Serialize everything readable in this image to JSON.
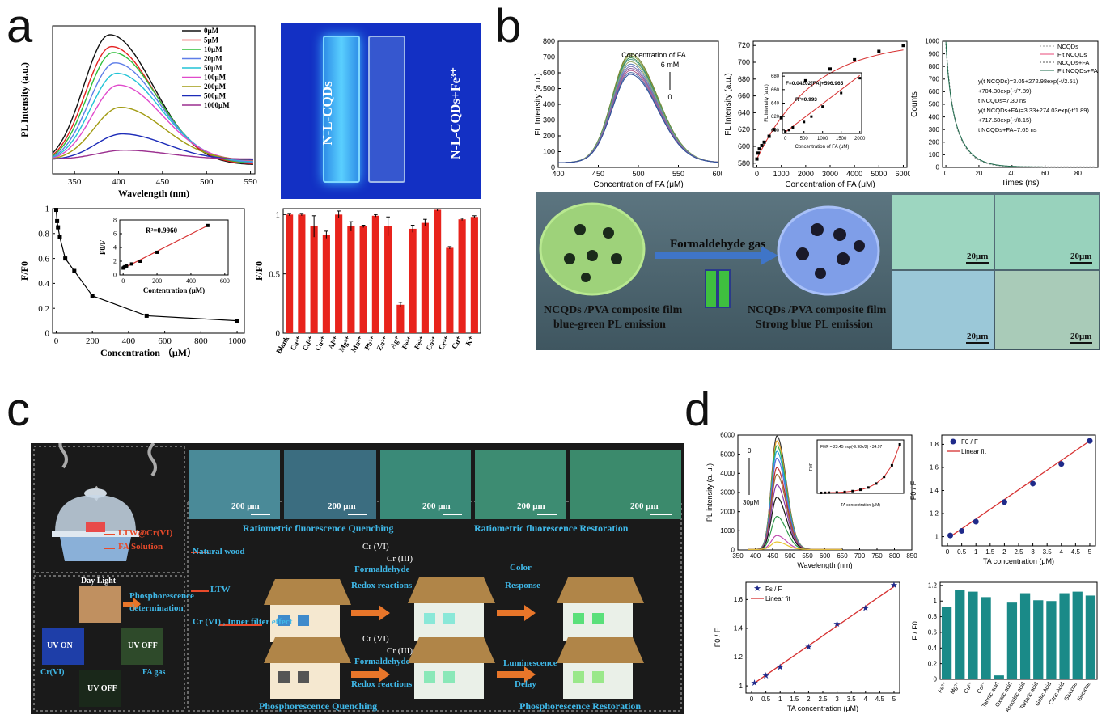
{
  "panel_labels": {
    "a": "a",
    "b": "b",
    "c": "c",
    "d": "d"
  },
  "colors": {
    "bar_red": "#e8231c",
    "bar_teal": "#1a8a88",
    "fit_red": "#d63030",
    "point_navy": "#1f2a8a",
    "line_black": "#111111",
    "panel_c_bg": "#1b1b1b",
    "panel_b_bg": "#4b6570",
    "cuvette_blue": "#1230c8"
  },
  "panel_a": {
    "photo": {
      "left_label": "N-L-CQDs",
      "right_label": "N-L-CQDs+Fe³⁺"
    }
  },
  "panel_b": {
    "scheme": {
      "arrow_label": "Formaldehyde gas",
      "left_caption_1": "NCQDs /PVA composite film",
      "left_caption_2": "blue-green PL emission",
      "right_caption_1": "NCQDs /PVA composite film",
      "right_caption_2": "Strong blue PL emission",
      "scale_bars": [
        "20μm",
        "20μm",
        "20μm",
        "20μm"
      ]
    }
  },
  "panel_c": {
    "scale_bars": [
      "200 μm",
      "200 μm",
      "200 μm",
      "200 μm",
      "200 μm"
    ],
    "title_quench": "Ratiometric fluorescence Quenching",
    "title_restore": "Ratiometric fluorescence Restoration",
    "label_ltw_crvi": "LTW@Cr(VI)",
    "label_fa_solution": "FA Solution",
    "label_day_light": "Day Light",
    "label_phos_det_1": "Phosphorescence",
    "label_phos_det_2": "determination",
    "label_uv_on": "UV ON",
    "label_uv_off": "UV OFF",
    "label_uv_off_2": "UV OFF",
    "label_crvi": "Cr(VI)",
    "label_fa_gas": "FA gas",
    "label_natural_wood": "Natural wood",
    "label_ltw": "LTW",
    "label_inner_filter": "Cr (VI) , Inner filter effect",
    "label_cr_vi_1": "Cr (VI)",
    "label_cr_iii_1": "Cr (III)",
    "label_formaldehyde_1": "Formaldehyde",
    "label_redox_1": "Redox reactions",
    "label_color_1": "Color",
    "label_color_2": "Response",
    "label_cr_vi_2": "Cr (VI)",
    "label_cr_iii_2": "Cr (III)",
    "label_formaldehyde_2": "Formaldehyde",
    "label_redox_2": "Redox reactions",
    "label_lum_1": "Luminescence",
    "label_lum_2": "Delay",
    "bottom_quench": "Phosphorescence Quenching",
    "bottom_restore": "Phosphorescence Restoration"
  },
  "chart_data": [
    {
      "id": "a1",
      "type": "line",
      "xlabel": "Wavelength (nm)",
      "ylabel": "PL Intensity (a.u.)",
      "xlim": [
        325,
        555
      ],
      "xticks": [
        350,
        400,
        450,
        500,
        550
      ],
      "peak_x": 390,
      "series": [
        {
          "name": "0μM",
          "color": "#111111",
          "peak": 0.94
        },
        {
          "name": "5μM",
          "color": "#e52222",
          "peak": 0.86
        },
        {
          "name": "10μM",
          "color": "#2fbf3a",
          "peak": 0.82
        },
        {
          "name": "20μM",
          "color": "#5e7ee8",
          "peak": 0.75
        },
        {
          "name": "50μM",
          "color": "#22c3d6",
          "peak": 0.68
        },
        {
          "name": "100μM",
          "color": "#e04acb",
          "peak": 0.6
        },
        {
          "name": "200μM",
          "color": "#a19b12",
          "peak": 0.45
        },
        {
          "name": "500μM",
          "color": "#1c2bb8",
          "peak": 0.27
        },
        {
          "name": "1000μM",
          "color": "#9b2f8f",
          "peak": 0.16
        }
      ]
    },
    {
      "id": "a2",
      "type": "line",
      "xlabel": "Concentration （μM）",
      "ylabel": "F/F0",
      "xlim": [
        -20,
        1040
      ],
      "ylim": [
        0.0,
        1.0
      ],
      "xticks": [
        0,
        200,
        400,
        600,
        800,
        1000
      ],
      "yticks": [
        0.0,
        0.2,
        0.4,
        0.6,
        0.8,
        1.0
      ],
      "x": [
        0,
        5,
        10,
        20,
        50,
        100,
        200,
        500,
        1000
      ],
      "y": [
        0.99,
        0.9,
        0.85,
        0.77,
        0.6,
        0.5,
        0.3,
        0.14,
        0.1
      ],
      "inset": {
        "xlabel": "Contentration (μM)",
        "ylabel": "F0/F",
        "annotation": "R²=0.9960",
        "xlim": [
          -20,
          620
        ],
        "ylim": [
          0,
          8
        ],
        "xticks": [
          0,
          200,
          400,
          600
        ],
        "yticks": [
          0,
          2,
          4,
          6,
          8
        ],
        "x": [
          0,
          5,
          10,
          20,
          50,
          100,
          200,
          500
        ],
        "y": [
          1.0,
          1.1,
          1.2,
          1.3,
          1.6,
          2.0,
          3.3,
          7.2
        ]
      }
    },
    {
      "id": "a3",
      "type": "bar",
      "ylabel": "F/F0",
      "ylim": [
        0.0,
        1.05
      ],
      "yticks": [
        0.0,
        0.5,
        1.0
      ],
      "categories": [
        "Blank",
        "Ca²⁺",
        "Cd²⁺",
        "Cu²⁺",
        "Al³⁺",
        "Mg²⁺",
        "Mn²⁺",
        "Pb²⁺",
        "Zn²⁺",
        "Ag⁺",
        "Fe³⁺",
        "Fe²⁺",
        "Co²⁺",
        "Cr³⁺",
        "Cu⁺",
        "K⁺"
      ],
      "values": [
        1.0,
        1.0,
        0.9,
        0.83,
        1.0,
        0.9,
        0.9,
        0.99,
        0.9,
        0.24,
        0.88,
        0.93,
        1.04,
        0.72,
        0.96,
        0.98
      ],
      "errors": [
        0.01,
        0.01,
        0.09,
        0.03,
        0.03,
        0.04,
        0.01,
        0.01,
        0.08,
        0.02,
        0.03,
        0.03,
        0.01,
        0.01,
        0.01,
        0.01
      ]
    },
    {
      "id": "b1",
      "type": "line",
      "xlabel": "Concentration of FA (μM)",
      "ylabel": "FL Intensity (a.u.)",
      "xlim": [
        400,
        600
      ],
      "ylim": [
        0,
        800
      ],
      "xticks": [
        400,
        450,
        500,
        550,
        600
      ],
      "yticks": [
        0,
        100,
        200,
        300,
        400,
        500,
        600,
        700,
        800
      ],
      "annotation": "Concentration of FA",
      "annotation_top": "6 mM",
      "annotation_bottom": "0",
      "peak_x": 490,
      "peaks": [
        720,
        708,
        695,
        685,
        670,
        655,
        640,
        628,
        615,
        602,
        590
      ],
      "colors": [
        "#6b7d2e",
        "#8b9c3c",
        "#3b8a55",
        "#4f9e8a",
        "#9aa86a",
        "#5a7fb8",
        "#7a6fb0",
        "#8a5f9e",
        "#b05a8a",
        "#4b6fa8",
        "#2f4f9a"
      ]
    },
    {
      "id": "b2",
      "type": "scatter",
      "xlabel": "Concentration of FA (μM)",
      "ylabel": "FL Intensity (a.u.)",
      "xlim": [
        -150,
        6150
      ],
      "ylim": [
        575,
        725
      ],
      "xticks": [
        0,
        1000,
        2000,
        3000,
        4000,
        5000,
        6000
      ],
      "yticks": [
        580,
        600,
        620,
        640,
        660,
        680,
        700,
        720
      ],
      "x": [
        0,
        50,
        100,
        200,
        300,
        500,
        700,
        1000,
        2000,
        3000,
        4000,
        5000,
        6000
      ],
      "y": [
        585,
        592,
        597,
        601,
        605,
        612,
        620,
        634,
        678,
        692,
        703,
        713,
        720
      ],
      "inset": {
        "xlabel": "Concentration of FA (μM)",
        "ylabel": "FL Intensity (a.u.)",
        "equation": "F=0.04202[FA]+596.965",
        "annotation": "R²=0.993",
        "xlim": [
          -80,
          2050
        ],
        "ylim": [
          595,
          685
        ],
        "xticks": [
          0,
          500,
          1000,
          1500,
          2000
        ],
        "yticks": [
          600,
          620,
          640,
          660,
          680
        ],
        "x": [
          0,
          100,
          200,
          500,
          700,
          1000,
          1500,
          2000
        ],
        "y": [
          598,
          600,
          604,
          612,
          620,
          635,
          655,
          677
        ]
      }
    },
    {
      "id": "b3",
      "type": "line",
      "xlabel": "Times (ns)",
      "ylabel": "Counts",
      "xlim": [
        -2,
        92
      ],
      "ylim": [
        0,
        1000
      ],
      "xticks": [
        0,
        20,
        40,
        60,
        80
      ],
      "yticks": [
        0,
        100,
        200,
        300,
        400,
        500,
        600,
        700,
        800,
        900,
        1000
      ],
      "legend": [
        "NCQDs",
        "Fit NCQDs",
        "NCQDs+FA",
        "Fit NCQDs+FA"
      ],
      "annotations": [
        "y(t NCQDs)=3.05+272.98exp(-t/2.51)",
        "+704.30exp(-t/7.89)",
        "t NCQDs=7.30 ns",
        "y(t NCQDs+FA)=3.33+274.03exp(-t/1.89)",
        "+717.68exp(-t/8.15)",
        "t NCQDs+FA=7.65 ns"
      ]
    },
    {
      "id": "d1",
      "type": "line",
      "xlabel": "Wavelength (nm)",
      "ylabel": "PL intensity (a. u.)",
      "xlim": [
        350,
        850
      ],
      "ylim": [
        0,
        6000
      ],
      "xticks": [
        350,
        400,
        450,
        500,
        550,
        600,
        650,
        700,
        750,
        800,
        850
      ],
      "yticks": [
        0,
        1000,
        2000,
        3000,
        4000,
        5000,
        6000
      ],
      "annotation_top": "0",
      "annotation_bottom": "30μM",
      "peak_x": 462,
      "peaks": [
        5950,
        5700,
        5450,
        5150,
        4800,
        4300,
        3950,
        3400,
        2750,
        1750,
        750,
        420
      ],
      "colors": [
        "#3a3a3a",
        "#e8a52f",
        "#2fa84a",
        "#23a6d6",
        "#5b6ed8",
        "#c03030",
        "#9a6b3a",
        "#8a3aa8",
        "#1a1a1a",
        "#2f9a4a",
        "#c04ab0",
        "#e8c52f"
      ],
      "inset": {
        "xlabel": "TA concentration (μM)",
        "ylabel": "F0/F",
        "equation": "F0/F = 23.45 exp(-9.98x/2) - 34.97",
        "xlim": [
          -5,
          105
        ],
        "ylim": [
          0,
          1.2
        ],
        "x": [
          0,
          5,
          10,
          20,
          30,
          40,
          50,
          60,
          70,
          80,
          90,
          100
        ],
        "y": [
          0.01,
          0.012,
          0.015,
          0.02,
          0.03,
          0.05,
          0.08,
          0.13,
          0.22,
          0.37,
          0.63,
          1.1
        ]
      }
    },
    {
      "id": "d2",
      "type": "scatter",
      "xlabel": "TA concentration (μM)",
      "ylabel": "F0 / F",
      "xlim": [
        -0.2,
        5.2
      ],
      "ylim": [
        0.92,
        1.88
      ],
      "xticks": [
        0.0,
        0.5,
        1.0,
        1.5,
        2.0,
        2.5,
        3.0,
        3.5,
        4.0,
        4.5,
        5.0
      ],
      "yticks": [
        1.0,
        1.2,
        1.4,
        1.6,
        1.8
      ],
      "legend": [
        "F0 / F",
        "Linear fit"
      ],
      "x": [
        0.1,
        0.5,
        1.0,
        2.0,
        3.0,
        4.0,
        5.0
      ],
      "y": [
        1.01,
        1.05,
        1.13,
        1.3,
        1.46,
        1.63,
        1.83
      ],
      "fit": [
        [
          0.1,
          1.0
        ],
        [
          5.0,
          1.83
        ]
      ]
    },
    {
      "id": "d3",
      "type": "scatter",
      "xlabel": "TA concentration (μM)",
      "ylabel": "F0 / F",
      "xlim": [
        -0.2,
        5.2
      ],
      "ylim": [
        0.95,
        1.72
      ],
      "xticks": [
        0.0,
        0.5,
        1.0,
        1.5,
        2.0,
        2.5,
        3.0,
        3.5,
        4.0,
        4.5,
        5.0
      ],
      "yticks": [
        1.0,
        1.2,
        1.4,
        1.6
      ],
      "legend": [
        "Fs / F",
        "Linear fit"
      ],
      "x": [
        0.1,
        0.5,
        1.0,
        2.0,
        3.0,
        4.0,
        5.0
      ],
      "y": [
        1.02,
        1.07,
        1.13,
        1.27,
        1.43,
        1.54,
        1.7
      ],
      "fit": [
        [
          0.1,
          1.02
        ],
        [
          5.0,
          1.69
        ]
      ]
    },
    {
      "id": "d4",
      "type": "bar",
      "ylabel": "F / F0",
      "ylim": [
        0.0,
        1.24
      ],
      "yticks": [
        0.0,
        0.2,
        0.4,
        0.6,
        0.8,
        1.0,
        1.2
      ],
      "categories": [
        "Fe³⁺",
        "Mg²⁺",
        "Cu²⁺",
        "Co²⁺",
        "Tannic acid",
        "Oxalic acid",
        "Ascorbic acid",
        "Tartaric acid",
        "Gallic Acid",
        "Citric Acid",
        "Glucose",
        "Sucrose"
      ],
      "values": [
        0.93,
        1.14,
        1.12,
        1.05,
        0.05,
        0.98,
        1.1,
        1.01,
        1.0,
        1.1,
        1.12,
        1.07
      ]
    }
  ]
}
